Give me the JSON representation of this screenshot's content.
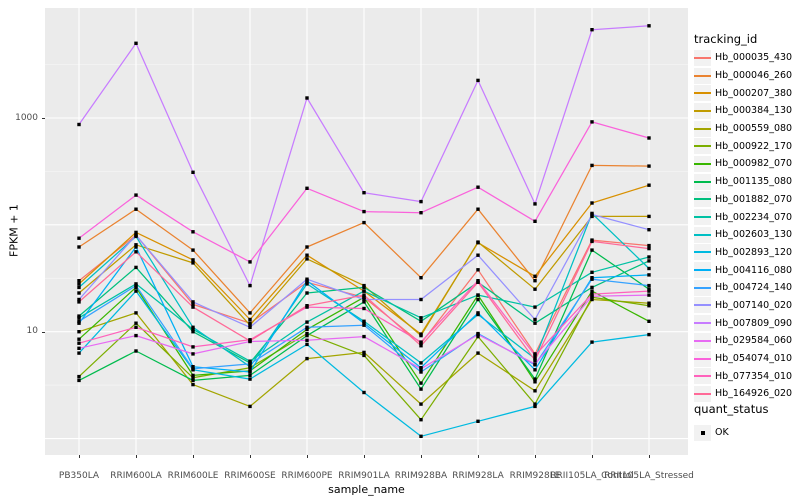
{
  "chart_data": {
    "type": "line",
    "title": "",
    "xlabel": "sample_name",
    "ylabel": "FPKM + 1",
    "y_scale": "log10",
    "y_ticks": [
      {
        "label": "10",
        "value": 10
      },
      {
        "label": "1000",
        "value": 1000
      }
    ],
    "y_gridlines_major": [
      1,
      10,
      100,
      1000
    ],
    "y_gridlines_minor": [
      3.162,
      31.62,
      316.2,
      3162
    ],
    "ylim": [
      0.7,
      11000
    ],
    "grid": true,
    "legend_position": "right",
    "panel_background": "#EBEBEB",
    "gridline_color": "#FFFFFF",
    "point_color": "#000000",
    "point_shape": "square",
    "categories": [
      "PB350LA",
      "RRIM600LA",
      "RRIM600LE",
      "RRIM600SE",
      "RRIM600PE",
      "RRIM901LA",
      "RRIM928BA",
      "RRIM928LA",
      "RRIM928LE",
      "RRII105LA_Control",
      "RRII105LA_Stressed"
    ],
    "series": [
      {
        "name": "Hb_000035_430",
        "color": "#F8766D",
        "values": [
          30,
          80,
          18,
          12,
          29,
          21,
          7.8,
          38,
          6.2,
          72,
          64
        ]
      },
      {
        "name": "Hb_000046_260",
        "color": "#EA8331",
        "values": [
          62,
          140,
          58,
          15,
          62,
          105,
          32,
          140,
          30,
          360,
          355
        ]
      },
      {
        "name": "Hb_000207_380",
        "color": "#D89000",
        "values": [
          28,
          85,
          47,
          13,
          52,
          24,
          9.5,
          68,
          33,
          160,
          235
        ]
      },
      {
        "name": "Hb_000384_130",
        "color": "#C09B00",
        "values": [
          23,
          65,
          44,
          11.5,
          48,
          27,
          9.2,
          69,
          25,
          120,
          120
        ]
      },
      {
        "name": "Hb_000559_080",
        "color": "#A3A500",
        "values": [
          10,
          15,
          3.2,
          2.0,
          5.6,
          6.4,
          2.1,
          6.3,
          2.8,
          20,
          18.5
        ]
      },
      {
        "name": "Hb_000922_170",
        "color": "#7CAE00",
        "values": [
          3.8,
          12,
          3.7,
          4.6,
          9.6,
          6.0,
          1.5,
          9.0,
          2.1,
          21,
          17.5
        ]
      },
      {
        "name": "Hb_000982_070",
        "color": "#39B600",
        "values": [
          8.5,
          26,
          3.9,
          4.3,
          10.5,
          21,
          3.3,
          22,
          3.4,
          24,
          12.5
        ]
      },
      {
        "name": "Hb_001135_080",
        "color": "#00BB4E",
        "values": [
          3.5,
          6.6,
          3.5,
          3.9,
          9.2,
          19,
          2.9,
          20,
          3.6,
          58,
          25
        ]
      },
      {
        "name": "Hb_001882_070",
        "color": "#00BF7D",
        "values": [
          14,
          40,
          10,
          5.1,
          23,
          26,
          12.5,
          29,
          12,
          26,
          46
        ]
      },
      {
        "name": "Hb_002234_070",
        "color": "#00C1A3",
        "values": [
          13.5,
          28,
          10.5,
          5.3,
          12.3,
          24,
          13.5,
          22,
          17,
          36,
          50
        ]
      },
      {
        "name": "Hb_002603_130",
        "color": "#00BFC4",
        "values": [
          26,
          78,
          11,
          4.7,
          28,
          12.5,
          5.1,
          14.5,
          5.6,
          128,
          39
        ]
      },
      {
        "name": "Hb_002893_120",
        "color": "#00BAE0",
        "values": [
          6.3,
          24,
          4.4,
          3.6,
          7.6,
          2.7,
          1.05,
          1.45,
          2.0,
          8.0,
          9.4
        ]
      },
      {
        "name": "Hb_004116_080",
        "color": "#00B0F6",
        "values": [
          12,
          62,
          4.7,
          4.2,
          30,
          12,
          4.6,
          15,
          4.4,
          32,
          34
        ]
      },
      {
        "name": "Hb_004724_140",
        "color": "#35A2FF",
        "values": [
          12.5,
          27,
          4.5,
          5.0,
          11,
          11.5,
          4.2,
          9.6,
          4.9,
          31,
          27
        ]
      },
      {
        "name": "Hb_007140_020",
        "color": "#9590FF",
        "values": [
          20,
          80,
          19,
          11,
          31,
          20,
          20,
          52,
          13,
          125,
          90
        ]
      },
      {
        "name": "Hb_007809_090",
        "color": "#C77CFF",
        "values": [
          870,
          5000,
          310,
          27,
          1540,
          200,
          165,
          2250,
          157,
          6700,
          7300
        ]
      },
      {
        "name": "Hb_029584_060",
        "color": "#E76BF3",
        "values": [
          7.0,
          9.2,
          6.2,
          8.1,
          8.3,
          9.0,
          4.5,
          9.4,
          5.0,
          21.5,
          22
        ]
      },
      {
        "name": "Hb_054074_010",
        "color": "#FA62DB",
        "values": [
          75,
          190,
          86,
          45,
          220,
          133,
          130,
          225,
          108,
          920,
          650
        ]
      },
      {
        "name": "Hb_077354_010",
        "color": "#FF62BC",
        "values": [
          7.8,
          11,
          7.2,
          8.4,
          17,
          16.5,
          8.0,
          30,
          6.0,
          22.5,
          24
        ]
      },
      {
        "name": "Hb_164926_020",
        "color": "#FF6A98",
        "values": [
          19,
          56,
          17,
          8.2,
          17.5,
          22,
          7.4,
          29,
          5.4,
          70,
          60
        ]
      }
    ],
    "legend_title": "tracking_id",
    "quant_status": {
      "title": "quant_status",
      "items": [
        "OK"
      ]
    }
  }
}
